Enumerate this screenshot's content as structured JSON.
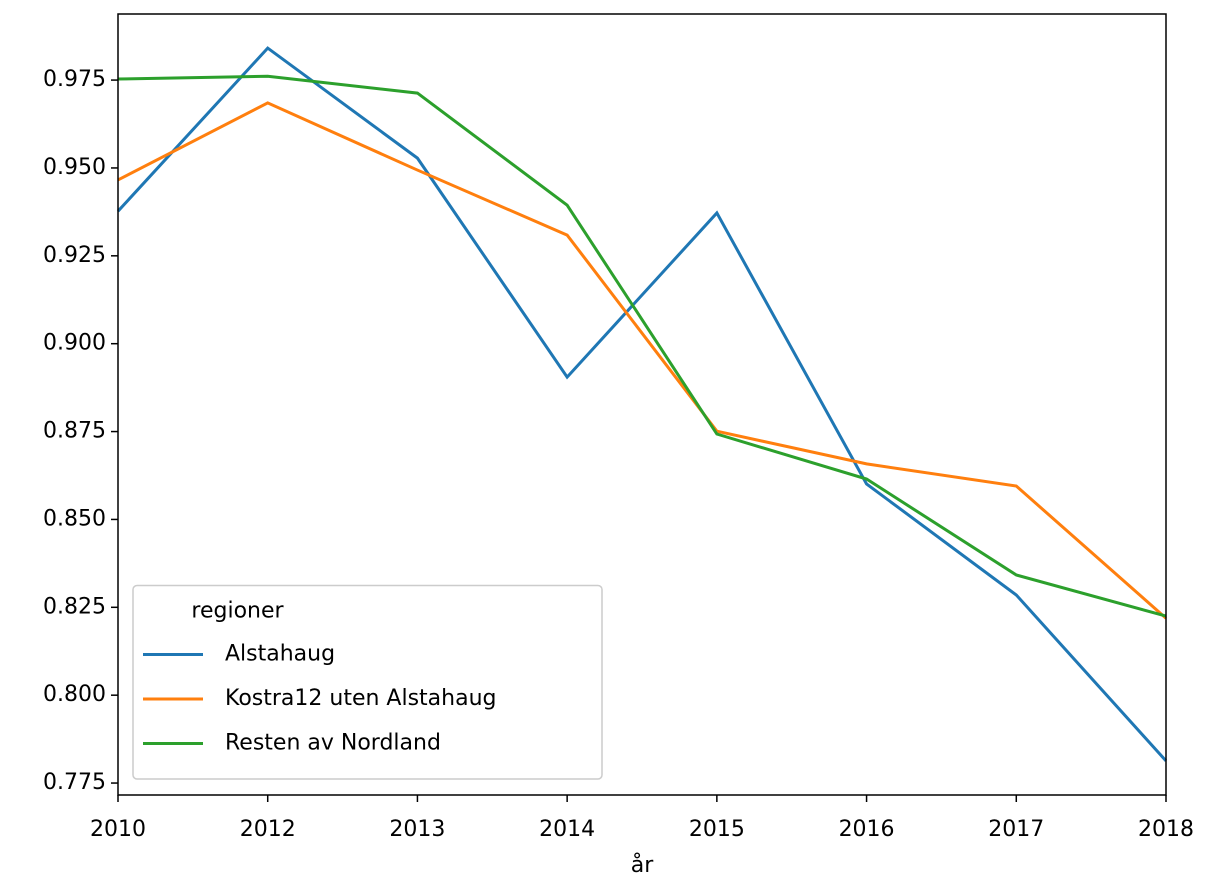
{
  "chart_data": {
    "type": "line",
    "xlabel": "år",
    "categories": [
      "2010",
      "2012",
      "2013",
      "2014",
      "2015",
      "2016",
      "2017",
      "2018"
    ],
    "series": [
      {
        "name": "Alstahaug",
        "color": "#1f77b4",
        "values": [
          0.9377,
          0.9841,
          0.9528,
          0.8905,
          0.9372,
          0.8601,
          0.8285,
          0.7813
        ]
      },
      {
        "name": "Kostra12 uten Alstahaug",
        "color": "#ff7f0e",
        "values": [
          0.9466,
          0.9685,
          0.9494,
          0.9309,
          0.8751,
          0.8658,
          0.8595,
          0.8219
        ]
      },
      {
        "name": "Resten av Nordland",
        "color": "#2ca02c",
        "values": [
          0.9753,
          0.9761,
          0.9713,
          0.9394,
          0.8743,
          0.8615,
          0.8342,
          0.8225
        ]
      }
    ],
    "legend_title": "regioner",
    "legend": "lower left",
    "ylim": [
      0.7716,
      0.9938
    ],
    "yticks": [
      0.775,
      {
        "value": 0.8,
        "label": "0.800"
      },
      0.825,
      {
        "value": 0.85,
        "label": "0.850"
      },
      0.875,
      {
        "value": 0.9,
        "label": "0.900"
      },
      0.925,
      {
        "value": 0.95,
        "label": "0.950"
      },
      0.975
    ],
    "grid": false
  }
}
